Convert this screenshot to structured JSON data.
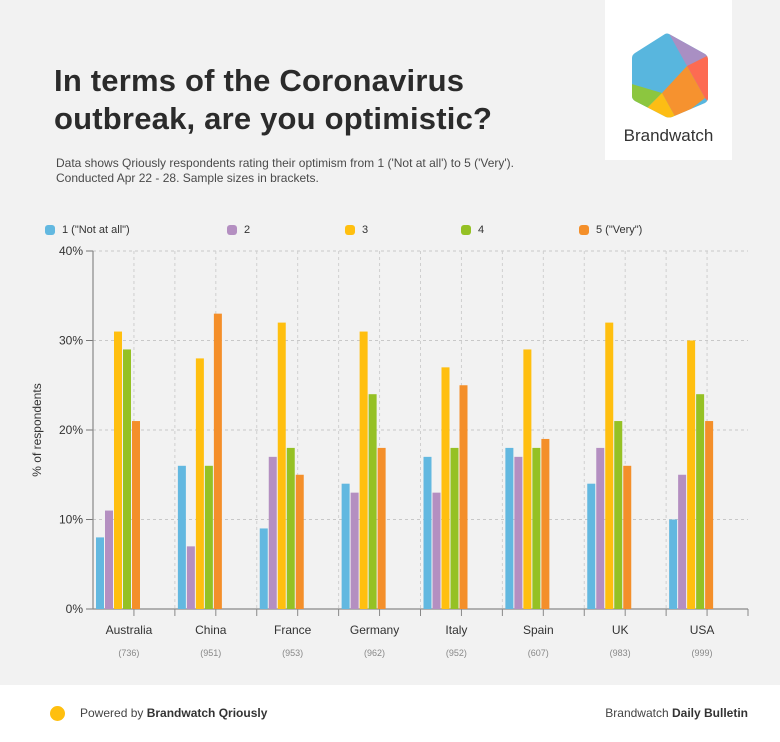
{
  "header": {
    "title_line1": "In terms of the Coronavirus",
    "title_line2": "outbreak, are you optimistic?",
    "subtitle_line1": "Data shows Qriously respondents rating their optimism from 1 ('Not at all') to 5 ('Very').",
    "subtitle_line2": "Conducted Apr 22 - 28. Sample sizes in brackets."
  },
  "logo": {
    "text": "Brandwatch",
    "icon": "brandwatch-hexagon-logo"
  },
  "footer": {
    "powered_prefix": "Powered by ",
    "powered_brand": "Brandwatch Qriously",
    "right_prefix": "Brandwatch ",
    "right_brand": "Daily Bulletin",
    "dot_color": "#ffbf0f"
  },
  "chart_data": {
    "type": "bar",
    "title": "In terms of the Coronavirus outbreak, are you optimistic?",
    "xlabel": "",
    "ylabel": "% of respondents",
    "ylim": [
      0,
      40
    ],
    "yticks": [
      "0%",
      "10%",
      "20%",
      "30%",
      "40%"
    ],
    "ytick_values": [
      0,
      10,
      20,
      30,
      40
    ],
    "grid": true,
    "legend_position": "top",
    "categories": [
      "Australia",
      "China",
      "France",
      "Germany",
      "Italy",
      "Spain",
      "UK",
      "USA"
    ],
    "sample_sizes": [
      "(736)",
      "(951)",
      "(953)",
      "(962)",
      "(952)",
      "(607)",
      "(983)",
      "(999)"
    ],
    "series": [
      {
        "name": "1 (\"Not at all\")",
        "color": "#62b8e0",
        "values": [
          8,
          16,
          9,
          14,
          17,
          18,
          14,
          10
        ]
      },
      {
        "name": "2",
        "color": "#b48fc1",
        "values": [
          11,
          7,
          17,
          13,
          13,
          17,
          18,
          15
        ]
      },
      {
        "name": "3",
        "color": "#ffbf0f",
        "values": [
          31,
          28,
          32,
          31,
          27,
          29,
          32,
          30
        ]
      },
      {
        "name": "4",
        "color": "#95c124",
        "values": [
          29,
          16,
          18,
          24,
          18,
          18,
          21,
          24
        ]
      },
      {
        "name": "5 (\"Very\")",
        "color": "#f48f2a",
        "values": [
          21,
          33,
          15,
          18,
          25,
          19,
          16,
          21
        ]
      }
    ]
  }
}
